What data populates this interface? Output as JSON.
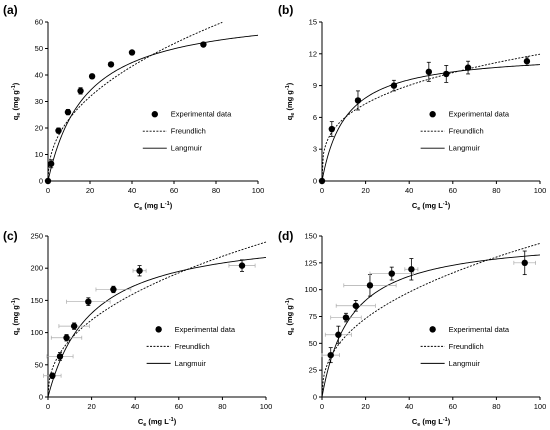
{
  "chart_data": [
    {
      "type": "scatter",
      "panel_label": "(a)",
      "xlabel_main": "C",
      "xlabel_sub": "e",
      "xlabel_unit": " (mg L",
      "ylabel_main": "q",
      "ylabel_sub": "e",
      "ylabel_unit": " (mg g",
      "xlim": [
        0,
        100
      ],
      "ylim": [
        0,
        60
      ],
      "xticks": [
        0,
        20,
        40,
        60,
        80,
        100
      ],
      "yticks": [
        0,
        10,
        20,
        30,
        40,
        50,
        60
      ],
      "grid": false,
      "legend_placement": "center-right",
      "experimental": {
        "name": "Experimental data",
        "x": [
          0,
          1.5,
          5,
          9.5,
          15.5,
          21,
          30,
          40,
          74
        ],
        "y": [
          0,
          6.5,
          19,
          26,
          34,
          39.5,
          44,
          48.5,
          51.5
        ],
        "err": [
          0,
          1.5,
          1,
          1,
          1.2,
          0.8,
          0.6,
          0.5,
          0.5
        ]
      },
      "freundlich": {
        "name": "Freundlich",
        "K": 8.4,
        "n": 2.25,
        "xmax": 83
      },
      "langmuir": {
        "name": "Langmuir",
        "qm": 65,
        "KL": 0.055,
        "xmax": 100
      }
    },
    {
      "type": "scatter",
      "panel_label": "(b)",
      "xlabel_main": "C",
      "xlabel_sub": "e",
      "xlabel_unit": " (mg L",
      "ylabel_main": "q",
      "ylabel_sub": "e",
      "ylabel_unit": " (mg g",
      "xlim": [
        0,
        100
      ],
      "ylim": [
        0,
        15
      ],
      "xticks": [
        0,
        20,
        40,
        60,
        80,
        100
      ],
      "yticks": [
        0,
        3,
        6,
        9,
        12,
        15
      ],
      "grid": false,
      "legend_placement": "center-right",
      "experimental": {
        "name": "Experimental data",
        "x": [
          0,
          4.5,
          16.5,
          33,
          49,
          57,
          67,
          94
        ],
        "y": [
          0,
          4.9,
          7.6,
          9.0,
          10.3,
          10.1,
          10.7,
          11.3
        ],
        "err": [
          0,
          0.7,
          0.9,
          0.5,
          0.9,
          0.8,
          0.6,
          0.4
        ]
      },
      "freundlich": {
        "name": "Freundlich",
        "K": 2.9,
        "n": 3.25,
        "xmax": 100
      },
      "langmuir": {
        "name": "Langmuir",
        "qm": 12.2,
        "KL": 0.09,
        "xmax": 100
      }
    },
    {
      "type": "scatter",
      "panel_label": "(c)",
      "xlabel_main": "C",
      "xlabel_sub": "e",
      "xlabel_unit": " (mg L",
      "ylabel_main": "q",
      "ylabel_sub": "e",
      "ylabel_unit": " (mg g",
      "xlim": [
        0,
        100
      ],
      "ylim": [
        0,
        250
      ],
      "xticks": [
        0,
        20,
        40,
        60,
        80,
        100
      ],
      "yticks": [
        0,
        50,
        100,
        150,
        200,
        250
      ],
      "grid": false,
      "legend_placement": "center-right",
      "experimental": {
        "name": "Experimental data",
        "x": [
          2,
          5.5,
          8.5,
          12,
          18.5,
          30,
          42,
          89
        ],
        "y": [
          33,
          63,
          92,
          110,
          148,
          167,
          196,
          204
        ],
        "err": [
          4,
          6,
          5,
          5,
          6,
          5,
          8,
          9
        ],
        "xerr": [
          4,
          6,
          7,
          7,
          10,
          8,
          3,
          6
        ]
      },
      "freundlich": {
        "name": "Freundlich",
        "K": 32.5,
        "n": 2.3,
        "xmax": 100
      },
      "langmuir": {
        "name": "Langmuir",
        "qm": 260,
        "KL": 0.05,
        "xmax": 100
      }
    },
    {
      "type": "scatter",
      "panel_label": "(d)",
      "xlabel_main": "C",
      "xlabel_sub": "e",
      "xlabel_unit": " (mg L",
      "ylabel_main": "q",
      "ylabel_sub": "e",
      "ylabel_unit": " (mg g",
      "xlim": [
        0,
        100
      ],
      "ylim": [
        0,
        150
      ],
      "xticks": [
        0,
        20,
        40,
        60,
        80,
        100
      ],
      "yticks": [
        0,
        25,
        50,
        75,
        100,
        125,
        150
      ],
      "grid": false,
      "legend_placement": "center-right",
      "experimental": {
        "name": "Experimental data",
        "x": [
          4,
          7.5,
          11,
          15.5,
          22,
          32,
          41,
          93
        ],
        "y": [
          39,
          58,
          74,
          85,
          104,
          115,
          119,
          125
        ],
        "err": [
          7,
          8,
          4,
          5,
          10,
          6,
          10,
          11
        ],
        "xerr": [
          4,
          6,
          7,
          9,
          12,
          10,
          3,
          5
        ]
      },
      "freundlich": {
        "name": "Freundlich",
        "K": 21,
        "n": 2.4,
        "xmax": 100
      },
      "langmuir": {
        "name": "Langmuir",
        "qm": 150,
        "KL": 0.075,
        "xmax": 100
      }
    }
  ]
}
